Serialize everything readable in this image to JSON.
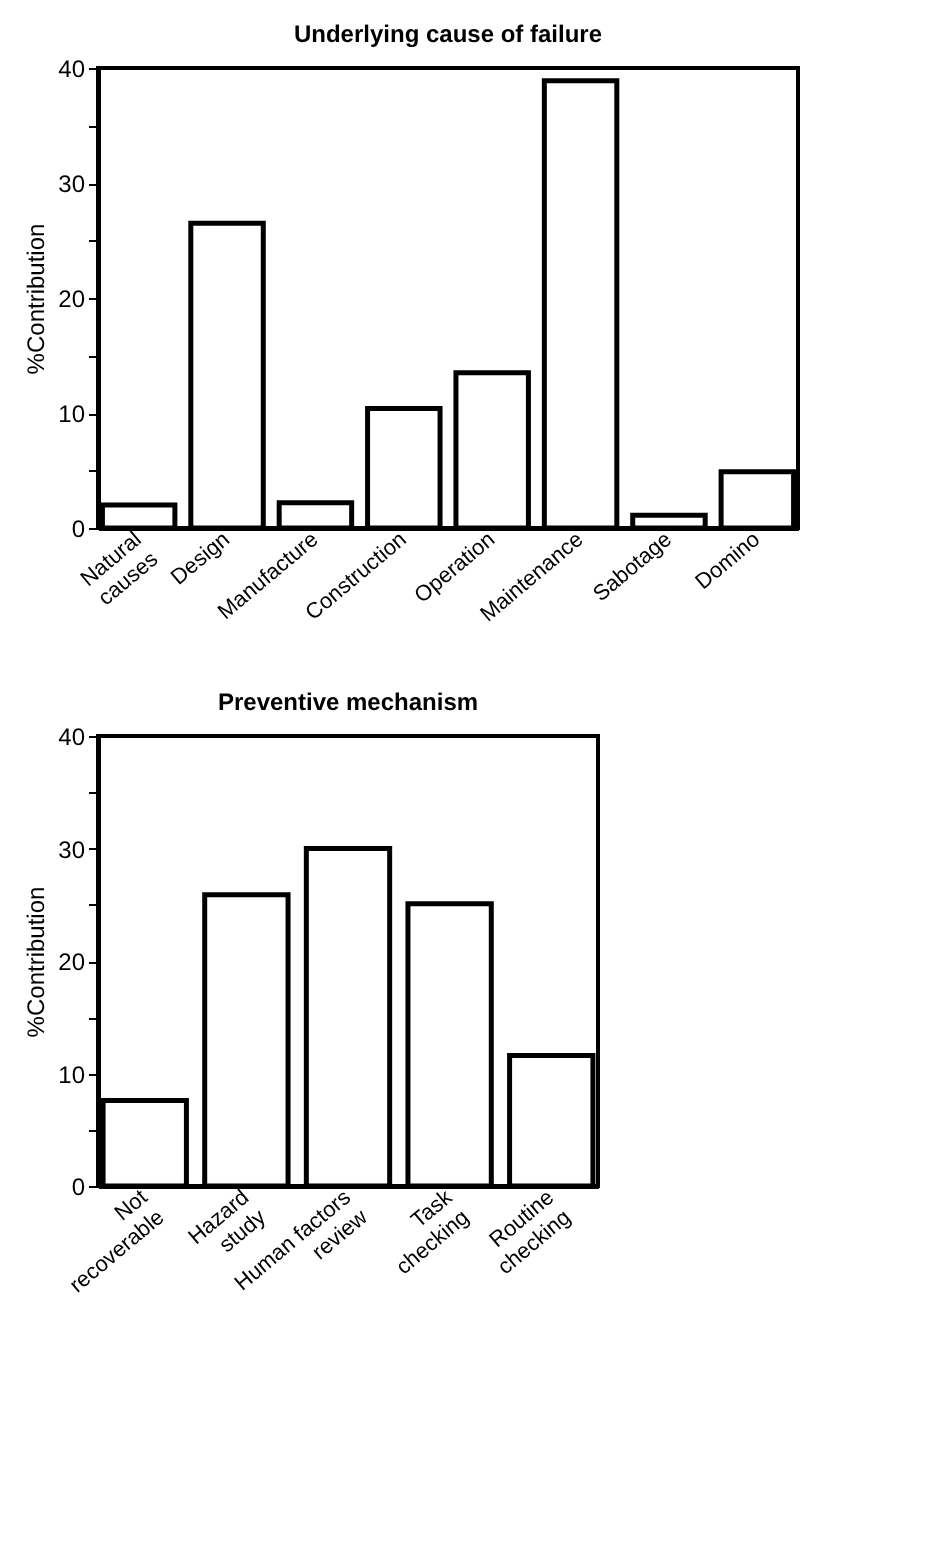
{
  "chart_data": [
    {
      "type": "bar",
      "title": "Underlying cause of failure",
      "ylabel": "%Contribution",
      "categories": [
        "Natural\ncauses",
        "Design",
        "Manufacture",
        "Construction",
        "Operation",
        "Maintenance",
        "Sabotage",
        "Domino"
      ],
      "values": [
        2.0,
        26.5,
        2.2,
        10.4,
        13.5,
        38.9,
        1.1,
        4.9
      ],
      "color": "#ffffff",
      "ylim": [
        0,
        40
      ],
      "yticks": [
        0,
        {
          "value": 5,
          "label": null
        },
        10,
        {
          "value": 15,
          "label": null
        },
        20,
        {
          "value": 25,
          "label": null
        },
        30,
        {
          "value": 35,
          "label": null
        },
        40
      ],
      "grid": false
    },
    {
      "type": "bar",
      "title": "Preventive mechanism",
      "ylabel": "%Contribution",
      "categories": [
        "Not\nrecoverable",
        "Hazard\nstudy",
        "Human factors\nreview",
        "Task\nchecking",
        "Routine\nchecking"
      ],
      "values": [
        7.6,
        25.9,
        30.0,
        25.1,
        11.6
      ],
      "color": "#ffffff",
      "ylim": [
        0,
        40
      ],
      "yticks": [
        0,
        {
          "value": 5,
          "label": null
        },
        10,
        {
          "value": 15,
          "label": null
        },
        20,
        {
          "value": 25,
          "label": null
        },
        30,
        {
          "value": 35,
          "label": null
        },
        40
      ],
      "grid": false
    }
  ]
}
